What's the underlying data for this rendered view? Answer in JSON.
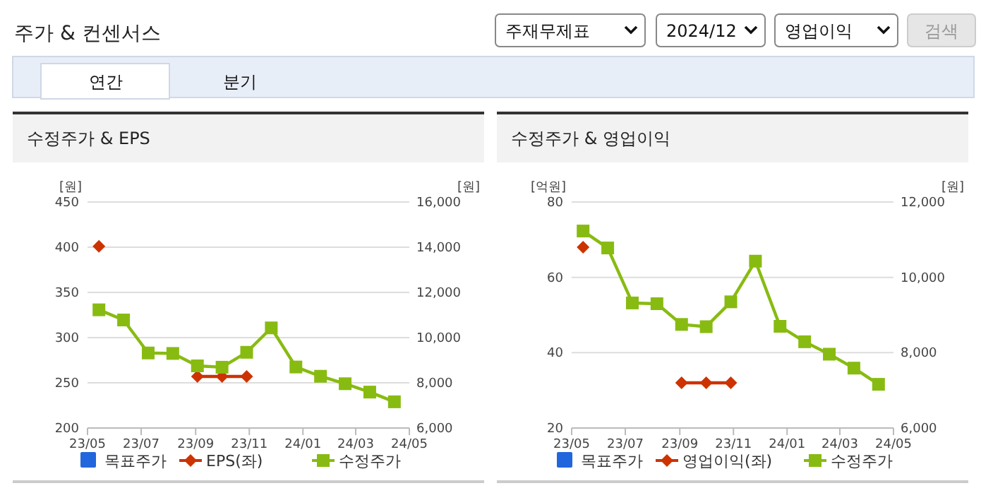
{
  "chart_data": [
    {
      "type": "other",
      "title": "주가 & 컨센서스",
      "annotations": [
        "주재무제표",
        "2024/12",
        "영업이익",
        "검색",
        "연간",
        "분기"
      ]
    },
    {
      "type": "line",
      "title": "수정주가 & EPS",
      "ylabel": "[원]",
      "y2label": "[원]",
      "x": [
        "2023-05-14",
        "2023-06-11",
        "2023-07-09",
        "2023-08-06",
        "2023-09-03",
        "2023-10-01",
        "2023-10-29",
        "2023-11-26",
        "2023-12-24",
        "2024-01-21",
        "2024-02-18",
        "2024-03-17",
        "2024-04-14"
      ],
      "xlim": [
        "2023-05-01",
        "2024-05-01"
      ],
      "xticks": [
        {
          "value": "2023-05",
          "label": "23/05"
        },
        {
          "value": "2023-07",
          "label": "23/07"
        },
        {
          "value": "2023-09",
          "label": "23/09"
        },
        {
          "value": "2023-11",
          "label": "23/11"
        },
        {
          "value": "2024-01",
          "label": "24/01"
        },
        {
          "value": "2024-03",
          "label": "24/03"
        },
        {
          "value": "2024-05",
          "label": "24/05"
        }
      ],
      "ylim": [
        200,
        450
      ],
      "yticks": [
        200,
        250,
        300,
        350,
        400,
        450
      ],
      "y2lim": [
        6000,
        16000
      ],
      "y2ticks": [
        {
          "value": 6000,
          "label": "6,000"
        },
        {
          "value": 8000,
          "label": "8,000"
        },
        {
          "value": 10000,
          "label": "10,000"
        },
        {
          "value": 12000,
          "label": "12,000"
        },
        {
          "value": 14000,
          "label": "14,000"
        },
        {
          "value": 16000,
          "label": "16,000"
        }
      ],
      "grid": "y",
      "legend": "bottom",
      "series": [
        {
          "name": "목표주가",
          "color": "#2266dd",
          "marker": "square",
          "axis": "y2",
          "values": [
            null,
            null,
            null,
            null,
            null,
            null,
            null,
            null,
            null,
            null,
            null,
            null,
            null
          ]
        },
        {
          "name": "EPS(좌)",
          "color": "#cc3300",
          "marker": "diamond",
          "values": [
            401,
            null,
            null,
            null,
            257,
            257,
            257,
            null,
            null,
            null,
            null,
            null,
            null
          ]
        },
        {
          "name": "수정주가",
          "color": "#88bb11",
          "marker": "square",
          "axis": "y2",
          "values": [
            11230,
            10780,
            9320,
            9300,
            8750,
            8690,
            9350,
            10430,
            8700,
            8290,
            7960,
            7590,
            7160
          ]
        }
      ]
    },
    {
      "type": "line",
      "title": "수정주가 & 영업이익",
      "ylabel": "[억원]",
      "y2label": "[원]",
      "x": [
        "2023-05-14",
        "2023-06-11",
        "2023-07-09",
        "2023-08-06",
        "2023-09-03",
        "2023-10-01",
        "2023-10-29",
        "2023-11-26",
        "2023-12-24",
        "2024-01-21",
        "2024-02-18",
        "2024-03-17",
        "2024-04-14"
      ],
      "xlim": [
        "2023-05-01",
        "2024-05-01"
      ],
      "xticks": [
        {
          "value": "2023-05",
          "label": "23/05"
        },
        {
          "value": "2023-07",
          "label": "23/07"
        },
        {
          "value": "2023-09",
          "label": "23/09"
        },
        {
          "value": "2023-11",
          "label": "23/11"
        },
        {
          "value": "2024-01",
          "label": "24/01"
        },
        {
          "value": "2024-03",
          "label": "24/03"
        },
        {
          "value": "2024-05",
          "label": "24/05"
        }
      ],
      "ylim": [
        20,
        80
      ],
      "yticks": [
        20,
        40,
        60,
        80
      ],
      "y2lim": [
        6000,
        12000
      ],
      "y2ticks": [
        {
          "value": 6000,
          "label": "6,000"
        },
        {
          "value": 8000,
          "label": "8,000"
        },
        {
          "value": 10000,
          "label": "10,000"
        },
        {
          "value": 12000,
          "label": "12,000"
        }
      ],
      "grid": "y",
      "legend": "bottom",
      "series": [
        {
          "name": "목표주가",
          "color": "#2266dd",
          "marker": "square",
          "axis": "y2",
          "values": [
            null,
            null,
            null,
            null,
            null,
            null,
            null,
            null,
            null,
            null,
            null,
            null,
            null
          ]
        },
        {
          "name": "영업이익(좌)",
          "color": "#cc3300",
          "marker": "diamond",
          "values": [
            68,
            null,
            null,
            null,
            32,
            32,
            32,
            null,
            null,
            null,
            null,
            null,
            null
          ]
        },
        {
          "name": "수정주가",
          "color": "#88bb11",
          "marker": "square",
          "axis": "y2",
          "values": [
            11230,
            10780,
            9320,
            9300,
            8750,
            8690,
            9350,
            10430,
            8700,
            8290,
            7960,
            7590,
            7160
          ]
        }
      ]
    }
  ]
}
